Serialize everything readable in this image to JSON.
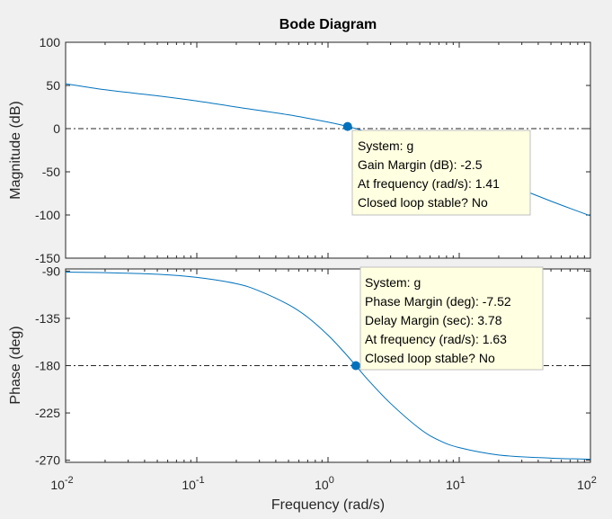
{
  "chart_data": {
    "type": "line",
    "title": "Bode Diagram",
    "xlabel": "Frequency  (rad/s)",
    "xscale": "log",
    "xlim": [
      0.01,
      100
    ],
    "x_ticks": [
      {
        "value": 0.01,
        "base": "10",
        "exp": "-2"
      },
      {
        "value": 0.1,
        "base": "10",
        "exp": "-1"
      },
      {
        "value": 1,
        "base": "10",
        "exp": "0"
      },
      {
        "value": 10,
        "base": "10",
        "exp": "1"
      },
      {
        "value": 100,
        "base": "10",
        "exp": "2"
      }
    ],
    "magnitude": {
      "ylabel": "Magnitude (dB)",
      "ylim": [
        -150,
        100
      ],
      "y_ticks": [
        "100",
        "50",
        "0",
        "-50",
        "-100",
        "-150"
      ],
      "y_tick_values": [
        100,
        50,
        0,
        -50,
        -100,
        -150
      ],
      "reference_line_y": 0,
      "series": [
        {
          "x": [
            0.01,
            0.02,
            0.05,
            0.1,
            0.2,
            0.5,
            1,
            1.41,
            2,
            5,
            10,
            20,
            50,
            100
          ],
          "values": [
            52,
            45,
            38,
            32,
            25,
            16,
            7.5,
            2.5,
            -4,
            -23,
            -42,
            -60,
            -84,
            -101
          ]
        }
      ],
      "marker": {
        "x": 1.41,
        "y": 2.5
      },
      "datatip": [
        "System: g",
        "Gain Margin (dB): -2.5",
        "At frequency (rad/s): 1.41",
        "Closed loop stable? No"
      ]
    },
    "phase": {
      "ylabel": "Phase (deg)",
      "ylim": [
        -272,
        -88
      ],
      "y_ticks": [
        "-90",
        "-135",
        "-180",
        "-225",
        "-270"
      ],
      "y_tick_values": [
        -90,
        -135,
        -180,
        -225,
        -270
      ],
      "reference_line_y": -180,
      "series": [
        {
          "x": [
            0.01,
            0.02,
            0.05,
            0.1,
            0.2,
            0.3,
            0.5,
            0.7,
            1,
            1.3,
            1.63,
            2,
            3,
            5,
            7,
            10,
            20,
            50,
            100
          ],
          "values": [
            -91,
            -91.5,
            -93,
            -96,
            -102,
            -109,
            -122,
            -134,
            -151,
            -166,
            -180,
            -193,
            -216,
            -240,
            -251,
            -258,
            -265,
            -268,
            -269
          ]
        }
      ],
      "marker": {
        "x": 1.63,
        "y": -180
      },
      "datatip": [
        "System: g",
        "Phase Margin (deg): -7.52",
        "Delay Margin (sec): 3.78",
        "At frequency (rad/s): 1.63",
        "Closed loop stable? No"
      ]
    },
    "line_color": "#0072bd",
    "reference_line_color": "#262626",
    "datatip_background": "#ffffe1"
  }
}
